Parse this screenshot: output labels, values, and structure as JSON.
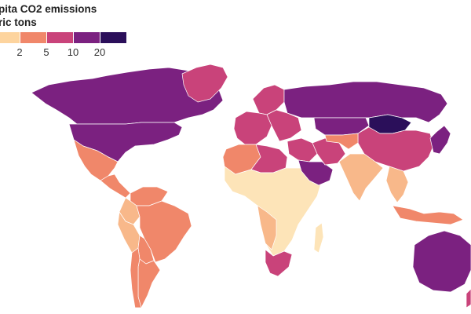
{
  "title": {
    "line1": "pita CO2 emissions",
    "line2": "ric tons"
  },
  "legend": {
    "bins": [
      {
        "color": "#fdd49e"
      },
      {
        "color": "#f0876a"
      },
      {
        "color": "#c9437a"
      },
      {
        "color": "#7b2180"
      },
      {
        "color": "#2b0f5a"
      }
    ],
    "ticks": [
      "2",
      "5",
      "10",
      "20"
    ]
  },
  "colors": {
    "land_very_low": "#fde4b8",
    "land_low": "#f8b88a",
    "land_mid": "#f0876a",
    "land_high": "#c9437a",
    "land_vhigh": "#7b2180",
    "land_max": "#2b0f5a",
    "no_data": "#cccccc",
    "border": "#ffffff"
  },
  "regions": [
    {
      "name": "canada-alaska",
      "level": "land_vhigh"
    },
    {
      "name": "united-states",
      "level": "land_vhigh"
    },
    {
      "name": "greenland",
      "level": "land_high"
    },
    {
      "name": "mexico",
      "level": "land_mid"
    },
    {
      "name": "central-america",
      "level": "land_mid"
    },
    {
      "name": "venezuela",
      "level": "land_mid"
    },
    {
      "name": "colombia",
      "level": "land_low"
    },
    {
      "name": "peru",
      "level": "land_low"
    },
    {
      "name": "brazil",
      "level": "land_mid"
    },
    {
      "name": "bolivia",
      "level": "land_mid"
    },
    {
      "name": "argentina",
      "level": "land_mid"
    },
    {
      "name": "chile",
      "level": "land_mid"
    },
    {
      "name": "scandinavia",
      "level": "land_high"
    },
    {
      "name": "western-europe",
      "level": "land_high"
    },
    {
      "name": "eastern-europe",
      "level": "land_high"
    },
    {
      "name": "russia",
      "level": "land_vhigh"
    },
    {
      "name": "kazakhstan",
      "level": "land_vhigh"
    },
    {
      "name": "mongolia",
      "level": "land_max"
    },
    {
      "name": "china",
      "level": "land_high"
    },
    {
      "name": "north-africa",
      "level": "land_mid"
    },
    {
      "name": "libya",
      "level": "land_high"
    },
    {
      "name": "sub-saharan-africa",
      "level": "land_very_low"
    },
    {
      "name": "angola-namibia",
      "level": "land_low"
    },
    {
      "name": "south-africa",
      "level": "land_high"
    },
    {
      "name": "madagascar",
      "level": "land_very_low"
    },
    {
      "name": "middle-east",
      "level": "land_high"
    },
    {
      "name": "saudi-arabia",
      "level": "land_vhigh"
    },
    {
      "name": "iran",
      "level": "land_high"
    },
    {
      "name": "central-asia",
      "level": "land_mid"
    },
    {
      "name": "india",
      "level": "land_low"
    },
    {
      "name": "southeast-asia",
      "level": "land_low"
    },
    {
      "name": "indonesia",
      "level": "land_mid"
    },
    {
      "name": "japan-korea",
      "level": "land_vhigh"
    },
    {
      "name": "australia",
      "level": "land_vhigh"
    },
    {
      "name": "new-zealand",
      "level": "land_high"
    }
  ]
}
